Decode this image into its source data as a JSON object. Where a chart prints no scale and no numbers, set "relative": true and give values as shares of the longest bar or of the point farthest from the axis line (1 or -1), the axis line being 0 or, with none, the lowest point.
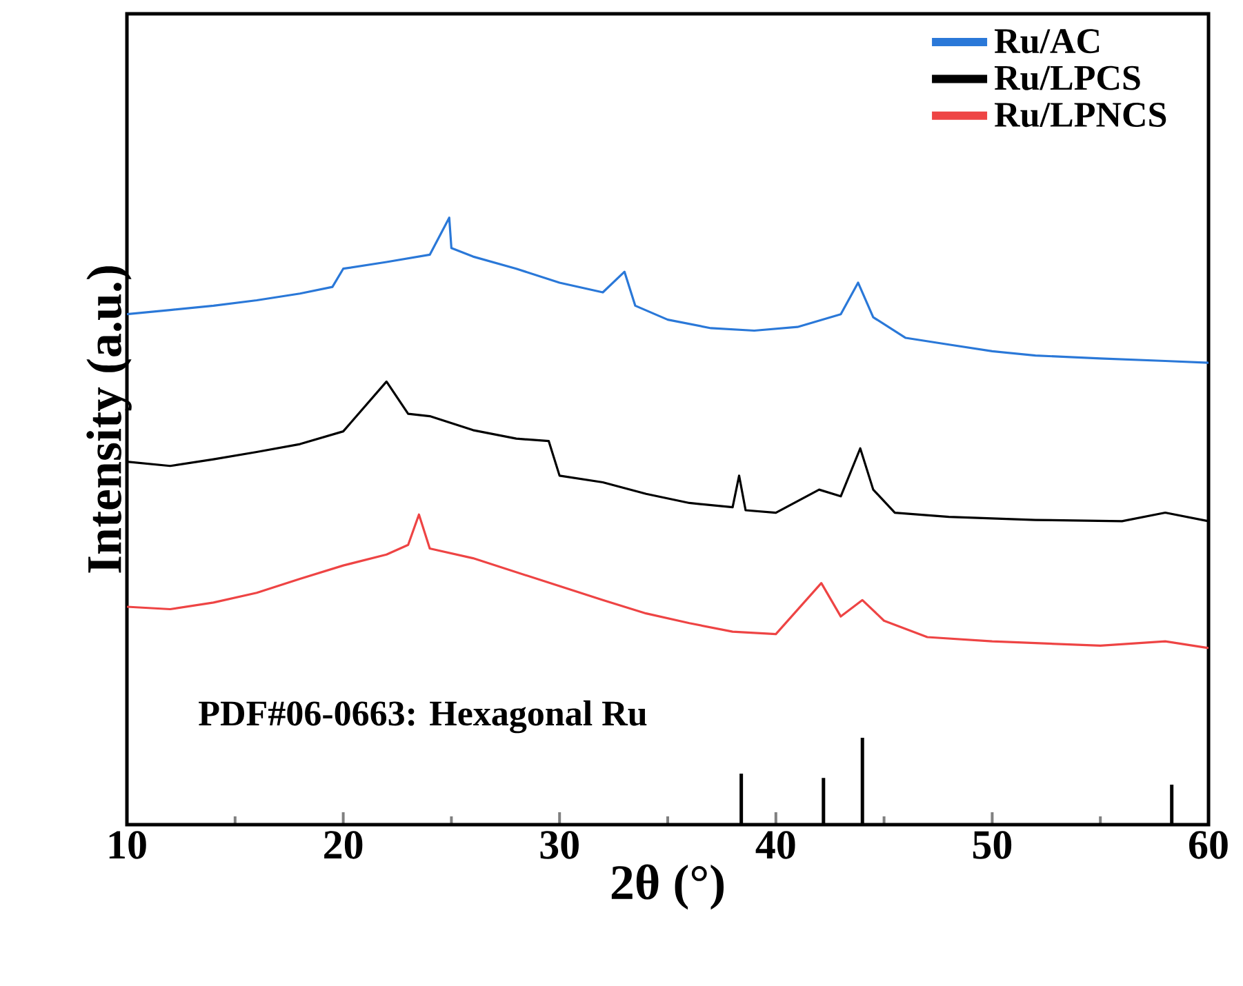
{
  "chart_data": {
    "type": "line",
    "relative": true,
    "xlabel": "2θ (°)",
    "ylabel": "Intensity (a.u.)",
    "xlim": [
      10,
      60
    ],
    "xticks": [
      10,
      20,
      30,
      40,
      50,
      60
    ],
    "legend": "top right",
    "annotations": [
      "PDF#06-0663:  Hexagonal Ru"
    ],
    "series": [
      {
        "name": "Ru/AC",
        "color": "#2a78d8",
        "x": [
          10,
          12,
          14,
          16,
          18,
          19.5,
          20,
          22,
          24,
          24.9,
          25,
          26,
          28,
          30,
          32,
          33,
          33.5,
          35,
          37,
          39,
          41,
          43,
          43.8,
          44.5,
          46,
          48,
          50,
          52,
          55,
          58,
          60
        ],
        "values": [
          0.841,
          0.848,
          0.855,
          0.864,
          0.875,
          0.886,
          0.916,
          0.927,
          0.939,
          1,
          0.95,
          0.936,
          0.916,
          0.893,
          0.877,
          0.911,
          0.855,
          0.832,
          0.818,
          0.814,
          0.82,
          0.841,
          0.893,
          0.836,
          0.802,
          0.791,
          0.78,
          0.773,
          0.768,
          0.764,
          0.761
        ]
      },
      {
        "name": "Ru/LPCS",
        "color": "#000000",
        "x": [
          10,
          12,
          14,
          16,
          18,
          20,
          22,
          23,
          24,
          26,
          28,
          29.5,
          30,
          32,
          34,
          36,
          38,
          38.3,
          38.6,
          40,
          42,
          43,
          43.9,
          44.5,
          45.5,
          48,
          52,
          56,
          58,
          60
        ],
        "values": [
          0.598,
          0.591,
          0.602,
          0.614,
          0.627,
          0.648,
          0.73,
          0.677,
          0.673,
          0.65,
          0.636,
          0.632,
          0.575,
          0.564,
          0.545,
          0.53,
          0.523,
          0.575,
          0.518,
          0.514,
          0.552,
          0.541,
          0.62,
          0.552,
          0.514,
          0.507,
          0.502,
          0.5,
          0.514,
          0.5
        ]
      },
      {
        "name": "Ru/LPNCS",
        "color": "#ee4444",
        "x": [
          10,
          12,
          14,
          16,
          18,
          20,
          22,
          23,
          23.5,
          24,
          26,
          28,
          30,
          32,
          34,
          36,
          38,
          40,
          42.1,
          43,
          44,
          45,
          47,
          50,
          55,
          58,
          60
        ],
        "values": [
          0.359,
          0.355,
          0.366,
          0.382,
          0.405,
          0.427,
          0.445,
          0.461,
          0.511,
          0.455,
          0.439,
          0.416,
          0.393,
          0.37,
          0.348,
          0.332,
          0.318,
          0.314,
          0.398,
          0.343,
          0.37,
          0.336,
          0.309,
          0.302,
          0.295,
          0.302,
          0.291
        ]
      },
      {
        "type": "bar",
        "color": "#000000",
        "x": [
          38.4,
          42.2,
          44.0,
          58.3
        ],
        "values": [
          0.084,
          0.077,
          0.143,
          0.066
        ]
      }
    ]
  }
}
